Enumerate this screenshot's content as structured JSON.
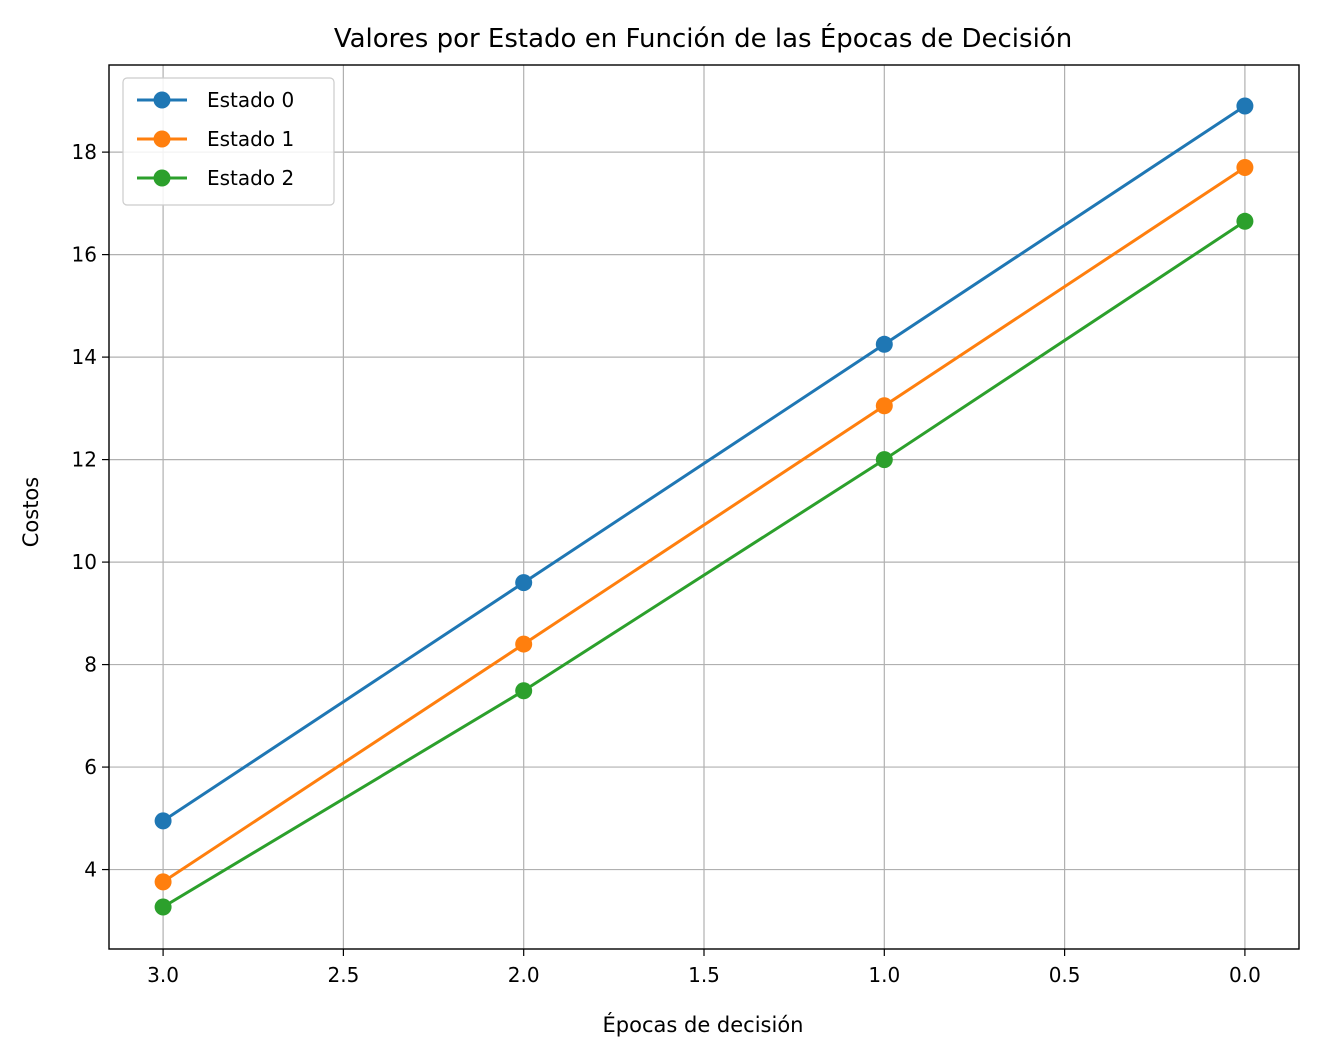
{
  "chart_data": {
    "type": "line",
    "title": "Valores por Estado en Función de las Épocas de Decisión",
    "xlabel": "Épocas de decisión",
    "ylabel": "Costos",
    "x_inverted": true,
    "xlim": [
      3.15,
      -0.15
    ],
    "ylim": [
      2.45,
      19.7
    ],
    "xticks": [
      3.0,
      2.5,
      2.0,
      1.5,
      1.0,
      0.5,
      0.0
    ],
    "xtick_labels": [
      "3.0",
      "2.5",
      "2.0",
      "1.5",
      "1.0",
      "0.5",
      "0.0"
    ],
    "yticks": [
      4,
      6,
      8,
      10,
      12,
      14,
      16,
      18
    ],
    "ytick_labels": [
      "4",
      "6",
      "8",
      "10",
      "12",
      "14",
      "16",
      "18"
    ],
    "grid": true,
    "legend_position": "top-left",
    "x": [
      3,
      2,
      1,
      0
    ],
    "series": [
      {
        "name": "Estado 0",
        "color": "#1f77b4",
        "marker": "circle",
        "values": [
          4.95,
          9.6,
          14.25,
          18.9
        ]
      },
      {
        "name": "Estado 1",
        "color": "#ff7f0e",
        "marker": "circle",
        "values": [
          3.76,
          8.4,
          13.05,
          17.7
        ]
      },
      {
        "name": "Estado 2",
        "color": "#2ca02c",
        "marker": "circle",
        "values": [
          3.27,
          7.49,
          12.0,
          16.65
        ]
      }
    ]
  }
}
